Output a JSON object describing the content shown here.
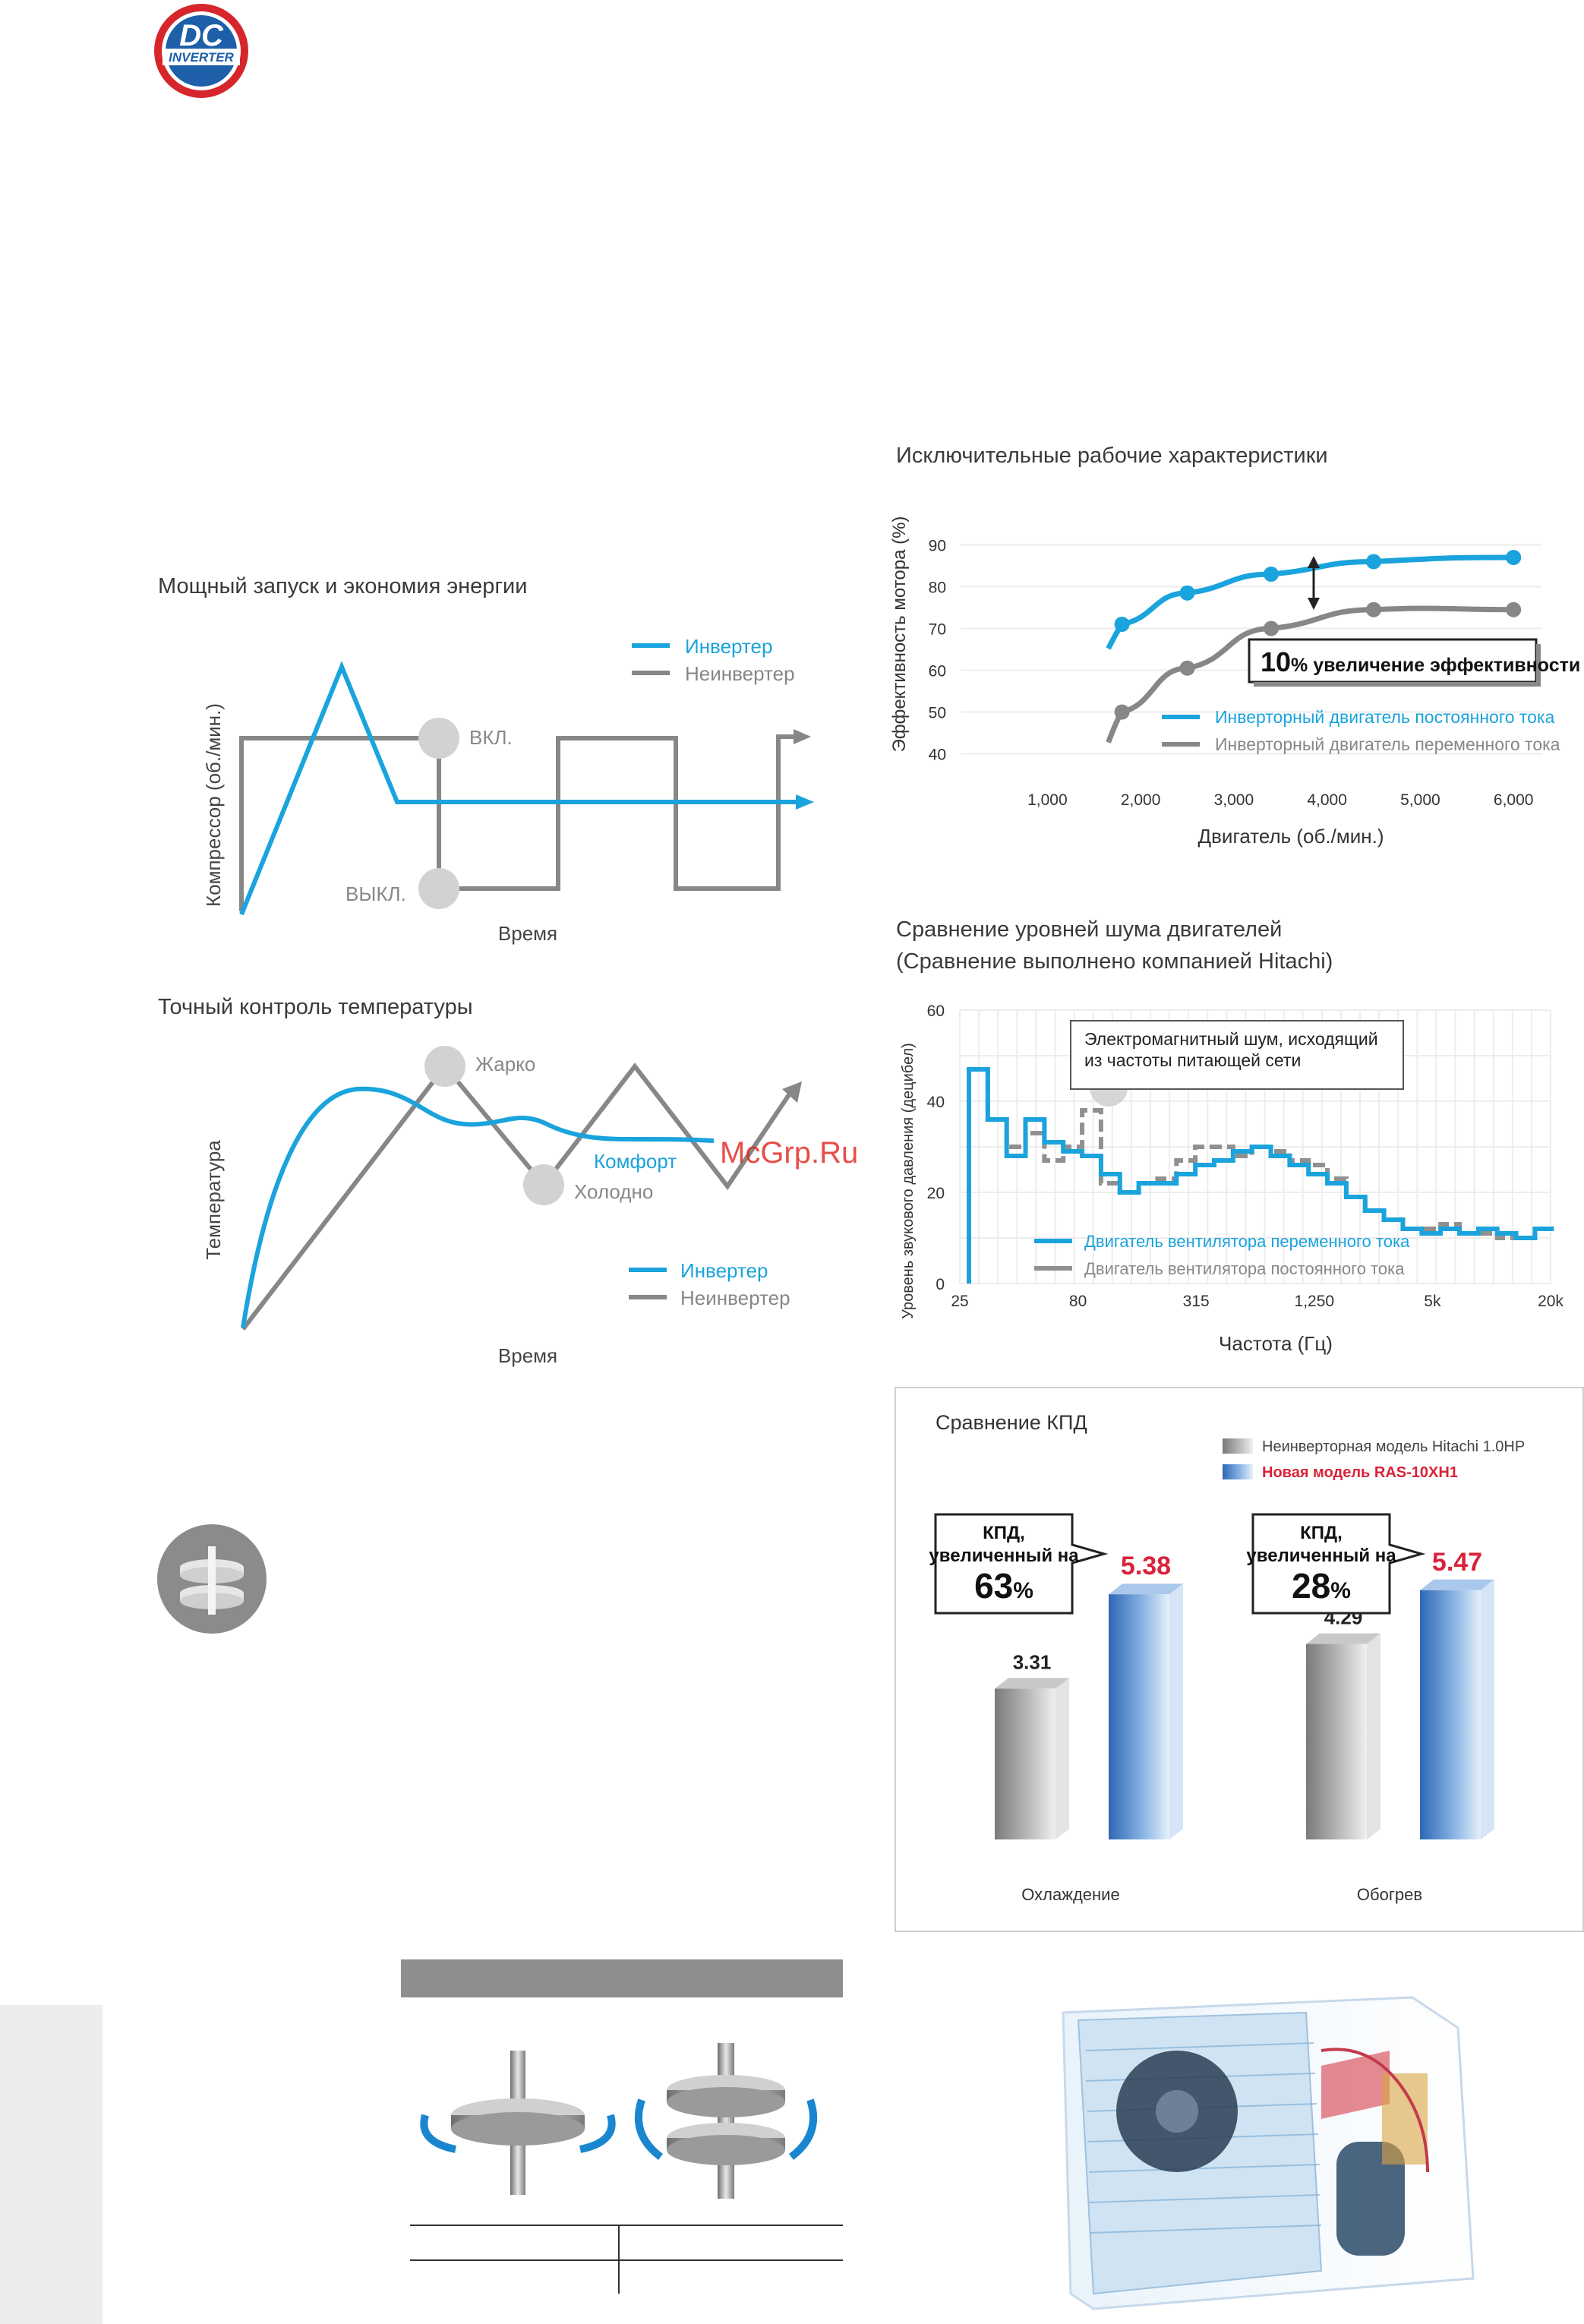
{
  "logo": {
    "line1": "DC",
    "line2": "INVERTER"
  },
  "compressor_chart": {
    "title": "Мощный запуск и экономия энергии",
    "ylabel": "Компрессор (об./мин.)",
    "xlabel": "Время",
    "on_label": "ВКЛ.",
    "off_label": "ВЫКЛ.",
    "legend": [
      "Инвертер",
      "Неинвертер"
    ],
    "colors": {
      "inverter": "#1aa3dc",
      "non_inverter": "#878787"
    }
  },
  "temperature_chart": {
    "title": "Точный контроль температуры",
    "ylabel": "Температура",
    "xlabel": "Время",
    "hot_label": "Жарко",
    "comfort_label": "Комфорт",
    "cold_label": "Холодно",
    "legend": [
      "Инвертер",
      "Неинвертер"
    ]
  },
  "watermark": "McGrp.Ru",
  "chart_data": [
    {
      "type": "line",
      "title": "Исключительные рабочие характеристики",
      "xlabel": "Двигатель (об./мин.)",
      "ylabel": "Эффективность мотора (%)",
      "x_ticks": [
        "1,000",
        "2,000",
        "3,000",
        "4,000",
        "5,000",
        "6,000"
      ],
      "y_ticks": [
        "40",
        "50",
        "60",
        "70",
        "80",
        "90"
      ],
      "xlim": [
        500,
        6300
      ],
      "ylim": [
        35,
        95
      ],
      "grid": true,
      "legend_position": "bottom-right",
      "series": [
        {
          "name": "Инверторный двигатель постоянного тока",
          "color": "#1aa3dc",
          "x": [
            1800,
            2500,
            3400,
            4500,
            6000
          ],
          "y": [
            71,
            78.5,
            83,
            86,
            87
          ]
        },
        {
          "name": "Инверторный двигатель переменного тока",
          "color": "#878787",
          "x": [
            1800,
            2500,
            3400,
            4500,
            6000
          ],
          "y": [
            50,
            60.5,
            70,
            74.5,
            74.5
          ]
        }
      ],
      "annotation": {
        "big": "10",
        "text": "% увеличение эффективности"
      }
    },
    {
      "type": "line",
      "title": "Сравнение уровней шума двигателей",
      "subtitle": "(Сравнение выполнено компанией Hitachi)",
      "xlabel": "Частота (Гц)",
      "ylabel": "Уровень звукового давления (децибел)",
      "x_ticks": [
        "25",
        "80",
        "315",
        "1,250",
        "5k",
        "20k"
      ],
      "y_ticks": [
        "0",
        "20",
        "40",
        "60"
      ],
      "ylim": [
        0,
        60
      ],
      "grid": true,
      "legend_position": "bottom-left",
      "callout": "Электромагнитный шум, исходящий из частоты питающей сети",
      "series": [
        {
          "name": "Двигатель вентилятора переменного тока",
          "color": "#1aa3dc",
          "y": [
            47,
            36,
            28,
            36,
            31,
            29,
            28,
            24,
            20,
            22,
            22,
            24,
            26,
            27,
            29,
            30,
            28,
            26,
            24,
            22,
            19,
            16,
            14,
            12,
            11,
            12,
            11,
            12,
            11,
            10,
            12
          ]
        },
        {
          "name": "Двигатель вентилятора постоянного тока",
          "color": "#909090",
          "y": [
            47,
            36,
            30,
            33,
            27,
            30,
            38,
            22,
            20,
            22,
            23,
            27,
            30,
            30,
            28,
            30,
            29,
            27,
            26,
            23,
            19,
            16,
            14,
            12,
            12,
            13,
            11,
            11,
            10,
            10,
            12
          ]
        }
      ]
    },
    {
      "type": "bar",
      "title": "Сравнение КПД",
      "categories": [
        "Охлаждение",
        "Обогрев"
      ],
      "legend_position": "top-right",
      "series": [
        {
          "name": "Неинверторная модель Hitachi 1.0HP",
          "color": "#9a9a9a",
          "values": [
            3.31,
            4.29
          ]
        },
        {
          "name": "Новая модель RAS-10XH1",
          "color": "#4f86c9",
          "values": [
            5.38,
            5.47
          ]
        }
      ],
      "callouts": [
        {
          "line1": "КПД,",
          "line2": "увеличенный на",
          "big": "63",
          "unit": "%"
        },
        {
          "line1": "КПД,",
          "line2": "увеличенный на",
          "big": "28",
          "unit": "%"
        }
      ]
    }
  ]
}
